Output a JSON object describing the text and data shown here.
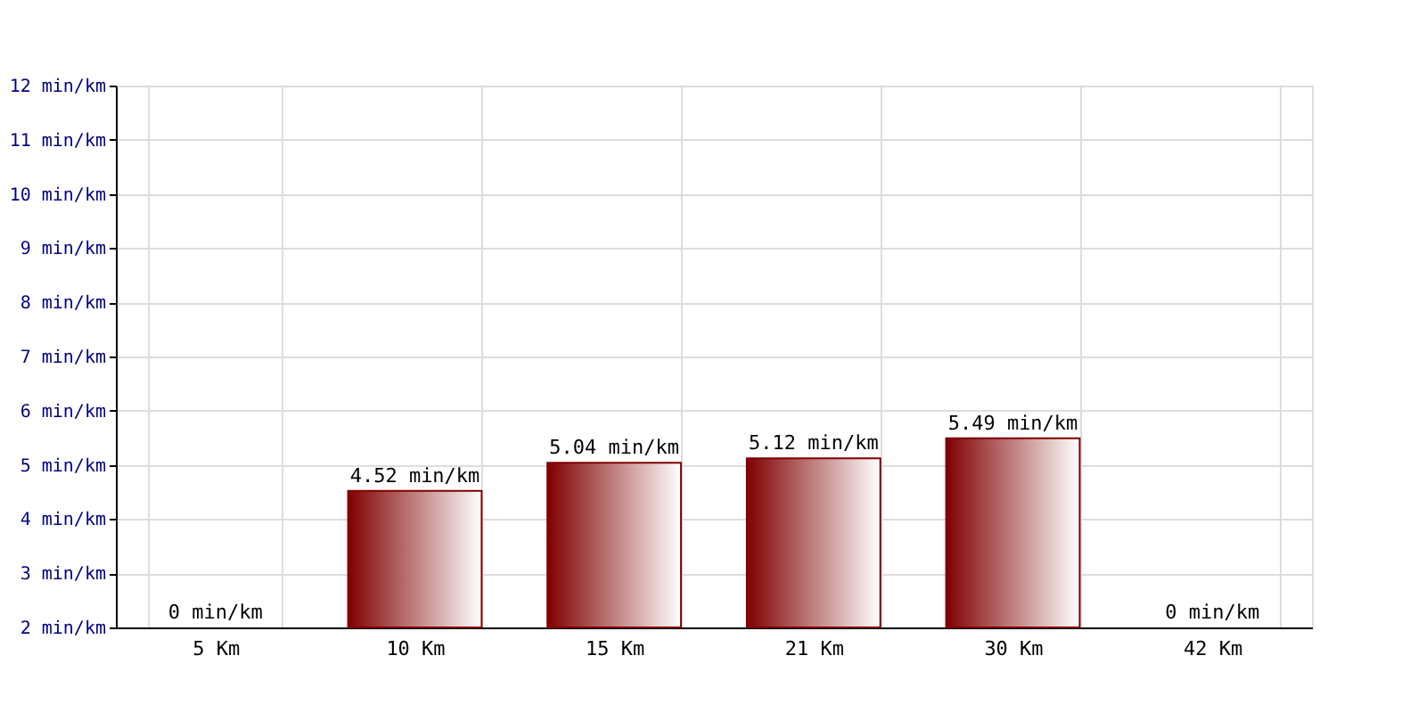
{
  "chart_data": {
    "type": "bar",
    "categories": [
      "5 Km",
      "10 Km",
      "15 Km",
      "21 Km",
      "30 Km",
      "42 Km"
    ],
    "values": [
      null,
      4.52,
      5.04,
      5.12,
      5.49,
      null
    ],
    "value_labels": [
      "0 min/km",
      "4.52 min/km",
      "5.04 min/km",
      "5.12 min/km",
      "5.49 min/km",
      "0 min/km"
    ],
    "color": "#800000",
    "ylim": [
      2,
      12
    ],
    "yticks": [
      {
        "value": 2,
        "label": "2 min/km"
      },
      {
        "value": 3,
        "label": "3 min/km"
      },
      {
        "value": 4,
        "label": "4 min/km"
      },
      {
        "value": 5,
        "label": "5 min/km"
      },
      {
        "value": 6,
        "label": "6 min/km"
      },
      {
        "value": 7,
        "label": "7 min/km"
      },
      {
        "value": 8,
        "label": "8 min/km"
      },
      {
        "value": 9,
        "label": "9 min/km"
      },
      {
        "value": 10,
        "label": "10 min/km"
      },
      {
        "value": 11,
        "label": "11 min/km"
      },
      {
        "value": 12,
        "label": "12 min/km"
      }
    ],
    "grid": true
  }
}
